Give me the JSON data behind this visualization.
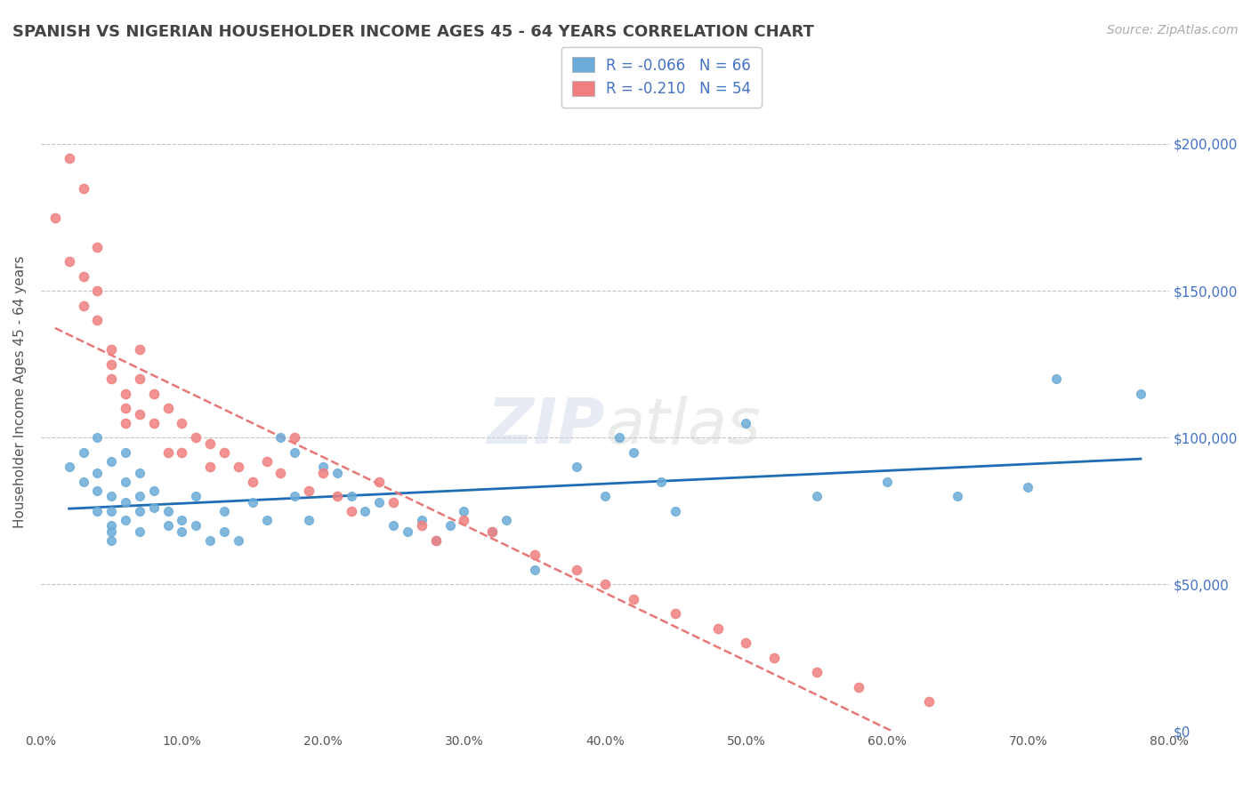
{
  "title": "SPANISH VS NIGERIAN HOUSEHOLDER INCOME AGES 45 - 64 YEARS CORRELATION CHART",
  "source_text": "Source: ZipAtlas.com",
  "xlabel": "",
  "ylabel": "Householder Income Ages 45 - 64 years",
  "xlim": [
    0.0,
    0.8
  ],
  "ylim": [
    0,
    220000
  ],
  "yticks": [
    0,
    50000,
    100000,
    150000,
    200000
  ],
  "xticks": [
    0.0,
    0.1,
    0.2,
    0.3,
    0.4,
    0.5,
    0.6,
    0.7,
    0.8
  ],
  "xtick_labels": [
    "0.0%",
    "10.0%",
    "20.0%",
    "30.0%",
    "40.0%",
    "50.0%",
    "60.0%",
    "70.0%",
    "80.0%"
  ],
  "ytick_labels": [
    "$0",
    "$50,000",
    "$100,000",
    "$150,000",
    "$200,000"
  ],
  "spanish_color": "#6dacd8",
  "nigerian_color": "#f08080",
  "spanish_R": -0.066,
  "spanish_N": 66,
  "nigerian_R": -0.21,
  "nigerian_N": 54,
  "watermark": "ZIPatlas",
  "spanish_x": [
    0.02,
    0.03,
    0.03,
    0.04,
    0.04,
    0.04,
    0.04,
    0.05,
    0.05,
    0.05,
    0.05,
    0.05,
    0.05,
    0.06,
    0.06,
    0.06,
    0.06,
    0.07,
    0.07,
    0.07,
    0.07,
    0.08,
    0.08,
    0.09,
    0.09,
    0.1,
    0.1,
    0.11,
    0.11,
    0.12,
    0.13,
    0.13,
    0.14,
    0.15,
    0.16,
    0.17,
    0.18,
    0.18,
    0.19,
    0.2,
    0.21,
    0.22,
    0.23,
    0.24,
    0.25,
    0.26,
    0.27,
    0.28,
    0.29,
    0.3,
    0.32,
    0.33,
    0.35,
    0.38,
    0.4,
    0.41,
    0.42,
    0.44,
    0.45,
    0.5,
    0.55,
    0.6,
    0.65,
    0.7,
    0.72,
    0.78
  ],
  "spanish_y": [
    90000,
    95000,
    85000,
    100000,
    88000,
    82000,
    75000,
    92000,
    80000,
    75000,
    70000,
    68000,
    65000,
    95000,
    85000,
    78000,
    72000,
    88000,
    80000,
    75000,
    68000,
    82000,
    76000,
    75000,
    70000,
    72000,
    68000,
    80000,
    70000,
    65000,
    75000,
    68000,
    65000,
    78000,
    72000,
    100000,
    95000,
    80000,
    72000,
    90000,
    88000,
    80000,
    75000,
    78000,
    70000,
    68000,
    72000,
    65000,
    70000,
    75000,
    68000,
    72000,
    55000,
    90000,
    80000,
    100000,
    95000,
    85000,
    75000,
    105000,
    80000,
    85000,
    80000,
    83000,
    120000,
    115000
  ],
  "nigerian_x": [
    0.01,
    0.02,
    0.02,
    0.03,
    0.03,
    0.03,
    0.04,
    0.04,
    0.04,
    0.05,
    0.05,
    0.05,
    0.06,
    0.06,
    0.06,
    0.07,
    0.07,
    0.07,
    0.08,
    0.08,
    0.09,
    0.09,
    0.1,
    0.1,
    0.11,
    0.12,
    0.12,
    0.13,
    0.14,
    0.15,
    0.16,
    0.17,
    0.18,
    0.19,
    0.2,
    0.21,
    0.22,
    0.24,
    0.25,
    0.27,
    0.28,
    0.3,
    0.32,
    0.35,
    0.38,
    0.4,
    0.42,
    0.45,
    0.48,
    0.5,
    0.52,
    0.55,
    0.58,
    0.63
  ],
  "nigerian_y": [
    175000,
    195000,
    160000,
    185000,
    155000,
    145000,
    165000,
    150000,
    140000,
    130000,
    125000,
    120000,
    115000,
    110000,
    105000,
    130000,
    120000,
    108000,
    115000,
    105000,
    110000,
    95000,
    105000,
    95000,
    100000,
    98000,
    90000,
    95000,
    90000,
    85000,
    92000,
    88000,
    100000,
    82000,
    88000,
    80000,
    75000,
    85000,
    78000,
    70000,
    65000,
    72000,
    68000,
    60000,
    55000,
    50000,
    45000,
    40000,
    35000,
    30000,
    25000,
    20000,
    15000,
    10000
  ]
}
